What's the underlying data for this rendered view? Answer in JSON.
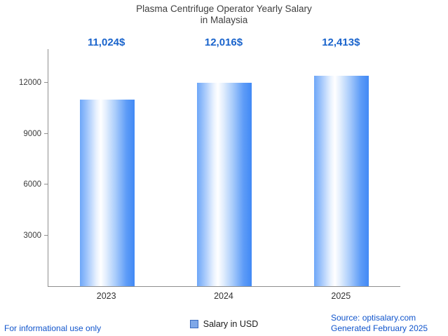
{
  "title": {
    "line1": "Plasma Centrifuge Operator Yearly Salary",
    "line2": "in Malaysia"
  },
  "chart_data": {
    "type": "bar",
    "title": "Plasma Centrifuge Operator Yearly Salary in Malaysia",
    "categories": [
      "2023",
      "2024",
      "2025"
    ],
    "values": [
      11024,
      12016,
      12413
    ],
    "value_labels": [
      "11,024$",
      "12,016$",
      "12,413$"
    ],
    "xlabel": "",
    "ylabel": "",
    "ylim": [
      0,
      14000
    ],
    "yticks": [
      3000,
      6000,
      9000,
      12000
    ],
    "grid": false,
    "legend_entries": [
      "Salary in USD"
    ],
    "legend_position": "bottom-center",
    "bar_color_gradient": [
      "#6ea7f8",
      "#ffffff",
      "#4189f5"
    ]
  },
  "legend": {
    "label": "Salary in USD"
  },
  "footer": {
    "left": "For informational use only",
    "source": "Source: optisalary.com",
    "generated": "Generated February 2025"
  },
  "colors": {
    "value_label": "#1a64cc",
    "footer_link": "#1155cc",
    "axis": "#8f8f8f",
    "title_text": "#3f3f3f"
  }
}
